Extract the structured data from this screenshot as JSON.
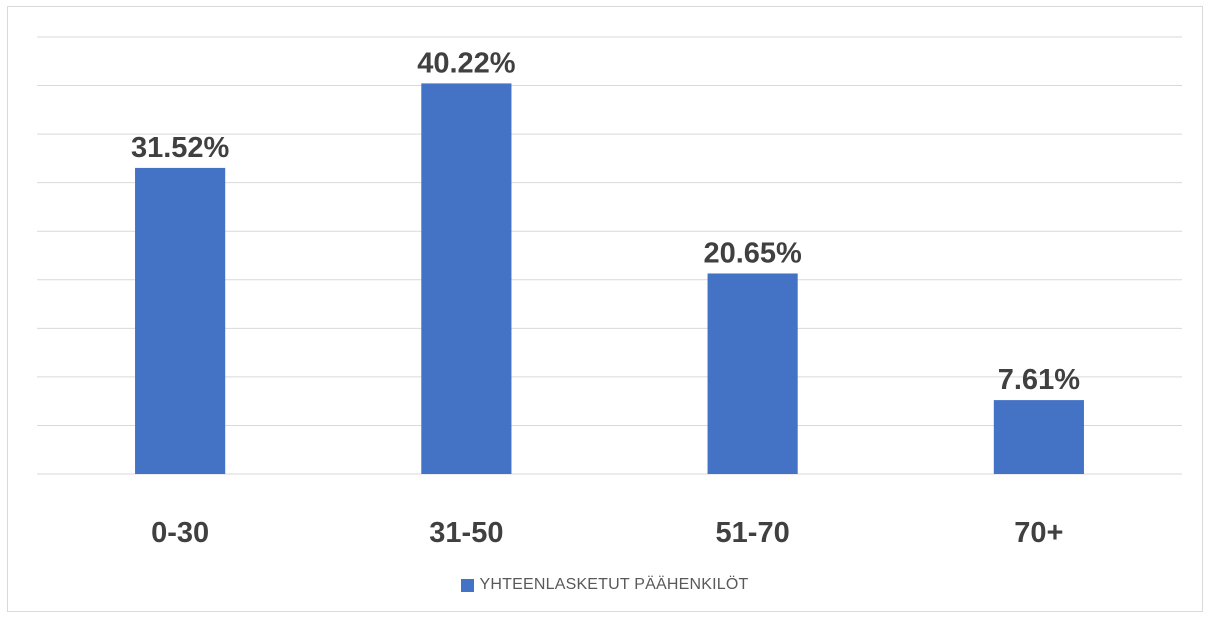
{
  "chart_data": {
    "type": "bar",
    "categories": [
      "0-30",
      "31-50",
      "51-70",
      "70+"
    ],
    "series": [
      {
        "name": "YHTEENLASKETUT PÄÄHENKILÖT",
        "values": [
          31.52,
          40.22,
          20.65,
          7.61
        ],
        "data_labels": [
          "31.52%",
          "40.22%",
          "20.65%",
          "7.61%"
        ],
        "color": "#4472c4"
      }
    ],
    "ylim": [
      0,
      45
    ],
    "y_grid_step": 5,
    "grid": true,
    "legend_position": "bottom",
    "title": "",
    "xlabel": "",
    "ylabel": ""
  }
}
